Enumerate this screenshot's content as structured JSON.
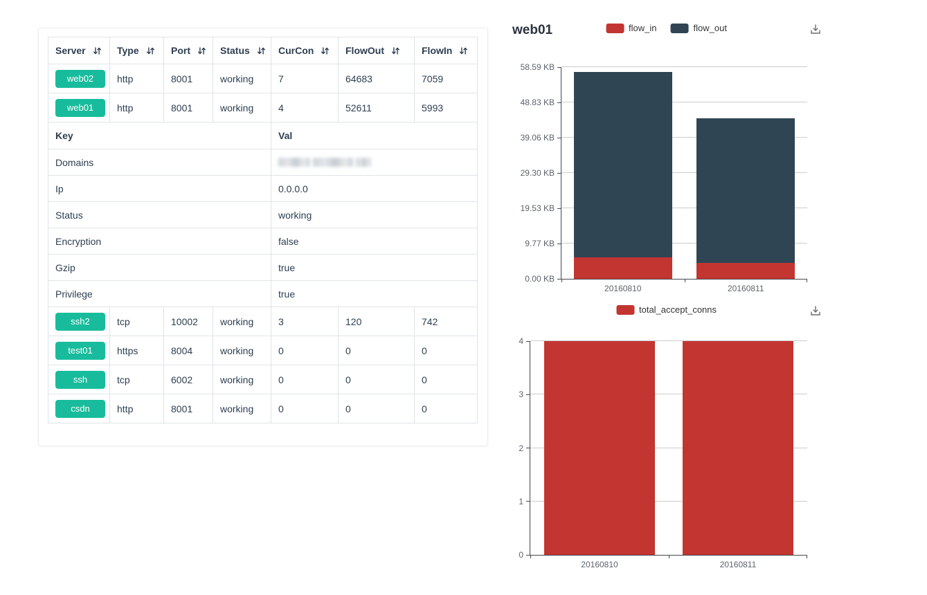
{
  "table": {
    "headers": [
      {
        "label": "Server",
        "sortable": true
      },
      {
        "label": "Type",
        "sortable": true
      },
      {
        "label": "Port",
        "sortable": true
      },
      {
        "label": "Status",
        "sortable": true
      },
      {
        "label": "CurCon",
        "sortable": true
      },
      {
        "label": "FlowOut",
        "sortable": true
      },
      {
        "label": "FlowIn",
        "sortable": true
      }
    ],
    "rows_top": [
      {
        "server": "web02",
        "type": "http",
        "port": "8001",
        "status": "working",
        "curcon": "7",
        "flowout": "64683",
        "flowin": "7059"
      },
      {
        "server": "web01",
        "type": "http",
        "port": "8001",
        "status": "working",
        "curcon": "4",
        "flowout": "52611",
        "flowin": "5993"
      }
    ],
    "kv_header": {
      "key": "Key",
      "val": "Val"
    },
    "kv_rows": [
      {
        "key": "Domains",
        "val": "",
        "redacted": true
      },
      {
        "key": "Ip",
        "val": "0.0.0.0"
      },
      {
        "key": "Status",
        "val": "working"
      },
      {
        "key": "Encryption",
        "val": "false"
      },
      {
        "key": "Gzip",
        "val": "true"
      },
      {
        "key": "Privilege",
        "val": "true"
      }
    ],
    "rows_bottom": [
      {
        "server": "ssh2",
        "type": "tcp",
        "port": "10002",
        "status": "working",
        "curcon": "3",
        "flowout": "120",
        "flowin": "742"
      },
      {
        "server": "test01",
        "type": "https",
        "port": "8004",
        "status": "working",
        "curcon": "0",
        "flowout": "0",
        "flowin": "0"
      },
      {
        "server": "ssh",
        "type": "tcp",
        "port": "6002",
        "status": "working",
        "curcon": "0",
        "flowout": "0",
        "flowin": "0"
      },
      {
        "server": "csdn",
        "type": "http",
        "port": "8001",
        "status": "working",
        "curcon": "0",
        "flowout": "0",
        "flowin": "0"
      }
    ]
  },
  "icons": {
    "sort": "⇵",
    "download": "⤓"
  },
  "colors": {
    "accent_teal": "#18bc9c",
    "chart_red": "#c23531",
    "chart_slate": "#2f4554",
    "table_text": "#2c3e50",
    "table_border": "#dfe4e8",
    "grid_line": "#cccccc",
    "axis_line": "#43474e"
  },
  "chart_data": [
    {
      "id": "flow",
      "type": "bar",
      "stacked": true,
      "title": "web01",
      "unit": "KB",
      "categories": [
        "20160810",
        "20160811"
      ],
      "series": [
        {
          "name": "flow_in",
          "color": "#c23531",
          "values": [
            5.85,
            4.5
          ]
        },
        {
          "name": "flow_out",
          "color": "#2f4554",
          "values": [
            51.38,
            39.9
          ]
        }
      ],
      "ylim": [
        0,
        58.59
      ],
      "ytick_labels": [
        "0.00 KB",
        "9.77 KB",
        "19.53 KB",
        "29.30 KB",
        "39.06 KB",
        "48.83 KB",
        "58.59 KB"
      ],
      "grid": true,
      "legend_position": "top-center"
    },
    {
      "id": "conns",
      "type": "bar",
      "stacked": false,
      "title": "",
      "unit": "",
      "categories": [
        "20160810",
        "20160811"
      ],
      "series": [
        {
          "name": "total_accept_conns",
          "color": "#c23531",
          "values": [
            4,
            4
          ]
        }
      ],
      "ylim": [
        0,
        4
      ],
      "ytick_labels": [
        "0",
        "1",
        "2",
        "3",
        "4"
      ],
      "grid": true,
      "legend_position": "top-center"
    }
  ]
}
